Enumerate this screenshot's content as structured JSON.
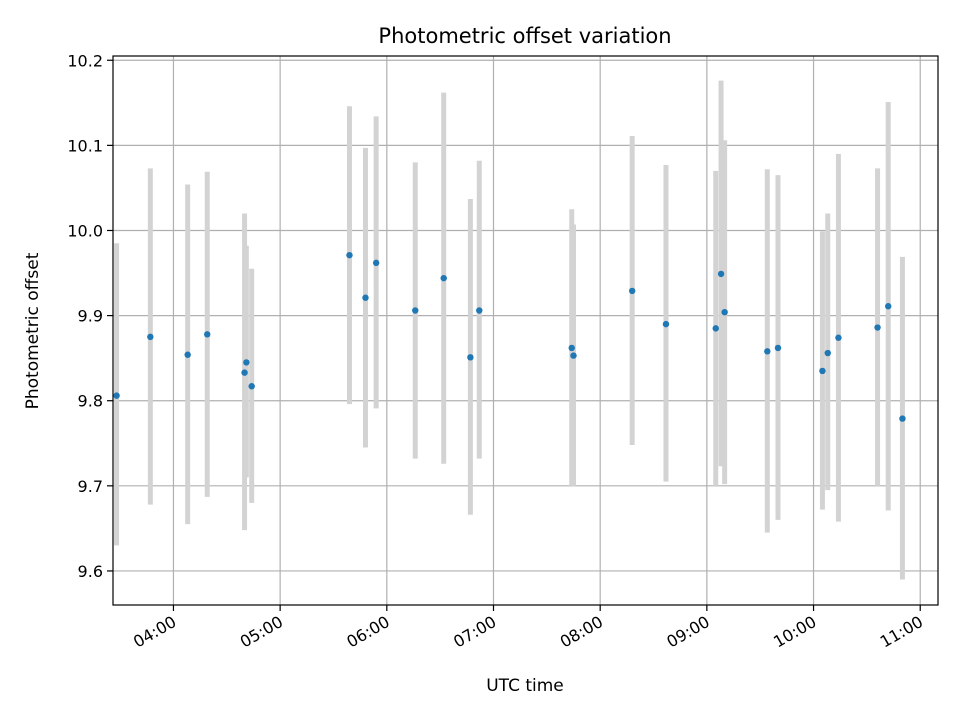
{
  "chart_data": {
    "type": "scatter",
    "title": "Photometric offset variation",
    "xlabel": "UTC time",
    "ylabel": "Photometric offset",
    "xlim": [
      "03:26",
      "11:10"
    ],
    "ylim": [
      9.56,
      10.205
    ],
    "grid": true,
    "error_bar_color": "#d3d3d3",
    "point_color": "#1f77b4",
    "xticks": [
      "04:00",
      "05:00",
      "06:00",
      "07:00",
      "08:00",
      "09:00",
      "10:00",
      "11:00"
    ],
    "yticks": [
      "9.6",
      "9.7",
      "9.8",
      "9.9",
      "10.0",
      "10.1",
      "10.2"
    ],
    "points": [
      {
        "x": "03:28",
        "y": 9.806,
        "yerr_low": 9.63,
        "yerr_high": 9.985
      },
      {
        "x": "03:47",
        "y": 9.875,
        "yerr_low": 9.678,
        "yerr_high": 10.073
      },
      {
        "x": "04:08",
        "y": 9.854,
        "yerr_low": 9.655,
        "yerr_high": 10.054
      },
      {
        "x": "04:19",
        "y": 9.878,
        "yerr_low": 9.687,
        "yerr_high": 10.069
      },
      {
        "x": "04:40",
        "y": 9.833,
        "yerr_low": 9.648,
        "yerr_high": 10.02
      },
      {
        "x": "04:41",
        "y": 9.845,
        "yerr_low": 9.71,
        "yerr_high": 9.982
      },
      {
        "x": "04:44",
        "y": 9.817,
        "yerr_low": 9.68,
        "yerr_high": 9.955
      },
      {
        "x": "05:39",
        "y": 9.971,
        "yerr_low": 9.796,
        "yerr_high": 10.146
      },
      {
        "x": "05:48",
        "y": 9.921,
        "yerr_low": 9.745,
        "yerr_high": 10.097
      },
      {
        "x": "05:54",
        "y": 9.962,
        "yerr_low": 9.791,
        "yerr_high": 10.134
      },
      {
        "x": "06:16",
        "y": 9.906,
        "yerr_low": 9.732,
        "yerr_high": 10.08
      },
      {
        "x": "06:32",
        "y": 9.944,
        "yerr_low": 9.726,
        "yerr_high": 10.162
      },
      {
        "x": "06:47",
        "y": 9.851,
        "yerr_low": 9.666,
        "yerr_high": 10.037
      },
      {
        "x": "06:52",
        "y": 9.906,
        "yerr_low": 9.732,
        "yerr_high": 10.082
      },
      {
        "x": "07:44",
        "y": 9.862,
        "yerr_low": 9.7,
        "yerr_high": 10.025
      },
      {
        "x": "07:45",
        "y": 9.853,
        "yerr_low": 9.7,
        "yerr_high": 10.007
      },
      {
        "x": "08:18",
        "y": 9.929,
        "yerr_low": 9.748,
        "yerr_high": 10.111
      },
      {
        "x": "08:37",
        "y": 9.89,
        "yerr_low": 9.705,
        "yerr_high": 10.077
      },
      {
        "x": "09:05",
        "y": 9.885,
        "yerr_low": 9.7,
        "yerr_high": 10.07
      },
      {
        "x": "09:08",
        "y": 9.949,
        "yerr_low": 9.723,
        "yerr_high": 10.176
      },
      {
        "x": "09:10",
        "y": 9.904,
        "yerr_low": 9.702,
        "yerr_high": 10.106
      },
      {
        "x": "09:34",
        "y": 9.858,
        "yerr_low": 9.645,
        "yerr_high": 10.072
      },
      {
        "x": "09:40",
        "y": 9.862,
        "yerr_low": 9.66,
        "yerr_high": 10.065
      },
      {
        "x": "10:05",
        "y": 9.835,
        "yerr_low": 9.672,
        "yerr_high": 9.999
      },
      {
        "x": "10:08",
        "y": 9.856,
        "yerr_low": 9.695,
        "yerr_high": 10.02
      },
      {
        "x": "10:14",
        "y": 9.874,
        "yerr_low": 9.658,
        "yerr_high": 10.09
      },
      {
        "x": "10:36",
        "y": 9.886,
        "yerr_low": 9.7,
        "yerr_high": 10.073
      },
      {
        "x": "10:42",
        "y": 9.911,
        "yerr_low": 9.671,
        "yerr_high": 10.151
      },
      {
        "x": "10:50",
        "y": 9.779,
        "yerr_low": 9.59,
        "yerr_high": 9.969
      }
    ]
  }
}
